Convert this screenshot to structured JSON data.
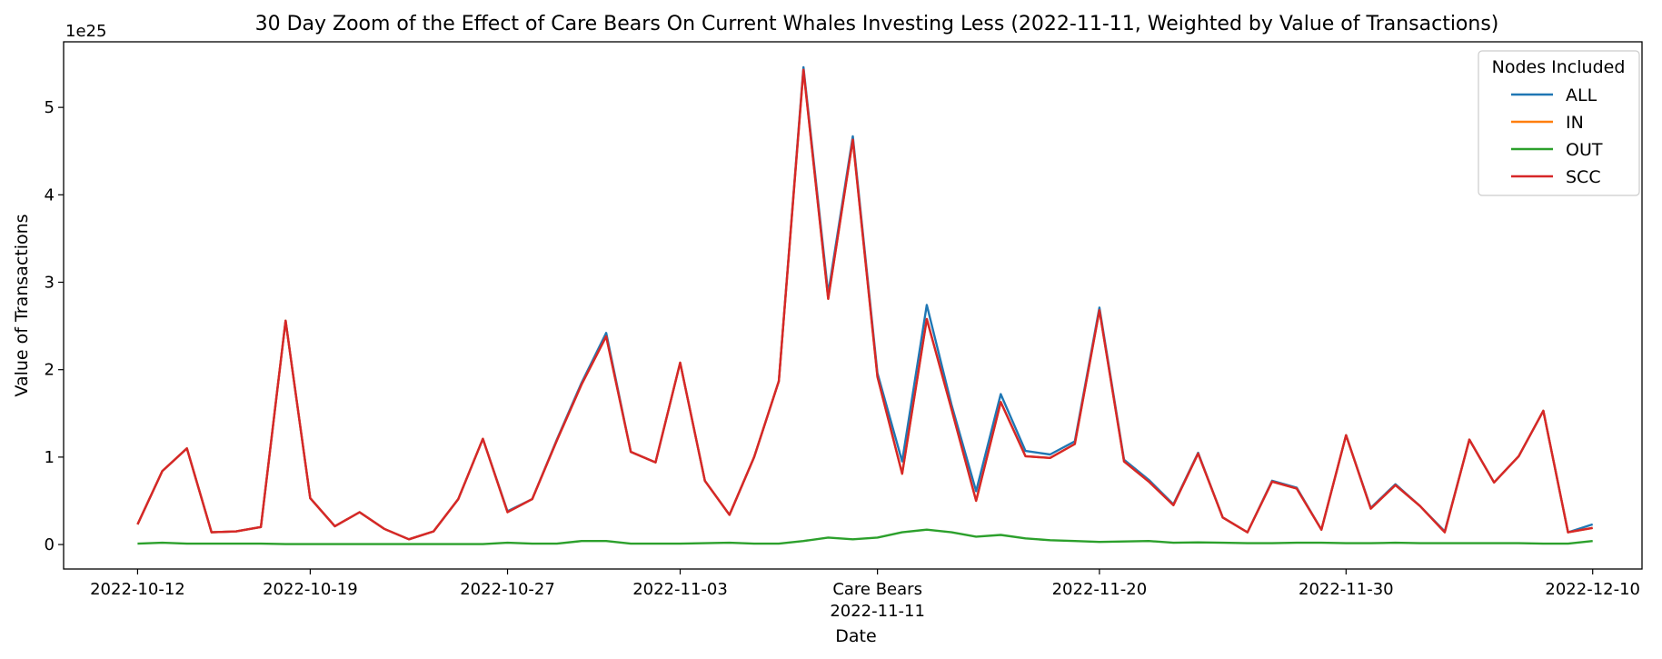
{
  "chart_data": {
    "type": "line",
    "title": "30 Day Zoom of the Effect of Care Bears On Current Whales Investing Less (2022-11-11, Weighted by Value of Transactions)",
    "xlabel": "Date",
    "ylabel": "Value of Transactions",
    "y_offset_text": "1e25",
    "y_scale_factor": 1e+25,
    "ylim": [
      -0.28,
      5.75
    ],
    "xlim": [
      "2022-10-09",
      "2022-12-12"
    ],
    "y_ticks": [
      0,
      1,
      2,
      3,
      4,
      5
    ],
    "x_ticks": [
      {
        "date": "2022-10-12",
        "label": "2022-10-12"
      },
      {
        "date": "2022-10-19",
        "label": "2022-10-19"
      },
      {
        "date": "2022-10-27",
        "label": "2022-10-27"
      },
      {
        "date": "2022-11-03",
        "label": "2022-11-03"
      },
      {
        "date": "2022-11-11",
        "label": "Care Bears",
        "label2": "2022-11-11"
      },
      {
        "date": "2022-11-20",
        "label": "2022-11-20"
      },
      {
        "date": "2022-11-30",
        "label": "2022-11-30"
      },
      {
        "date": "2022-12-10",
        "label": "2022-12-10"
      }
    ],
    "grid": false,
    "legend": {
      "title": "Nodes Included",
      "placement": "top-right"
    },
    "x": [
      "2022-10-12",
      "2022-10-13",
      "2022-10-14",
      "2022-10-15",
      "2022-10-16",
      "2022-10-17",
      "2022-10-18",
      "2022-10-19",
      "2022-10-20",
      "2022-10-21",
      "2022-10-22",
      "2022-10-23",
      "2022-10-24",
      "2022-10-25",
      "2022-10-26",
      "2022-10-27",
      "2022-10-28",
      "2022-10-29",
      "2022-10-30",
      "2022-10-31",
      "2022-11-01",
      "2022-11-02",
      "2022-11-03",
      "2022-11-04",
      "2022-11-05",
      "2022-11-06",
      "2022-11-07",
      "2022-11-08",
      "2022-11-09",
      "2022-11-10",
      "2022-11-11",
      "2022-11-12",
      "2022-11-13",
      "2022-11-14",
      "2022-11-15",
      "2022-11-16",
      "2022-11-17",
      "2022-11-18",
      "2022-11-19",
      "2022-11-20",
      "2022-11-21",
      "2022-11-22",
      "2022-11-23",
      "2022-11-24",
      "2022-11-25",
      "2022-11-26",
      "2022-11-27",
      "2022-11-28",
      "2022-11-29",
      "2022-11-30",
      "2022-12-01",
      "2022-12-02",
      "2022-12-03",
      "2022-12-04",
      "2022-12-05",
      "2022-12-06",
      "2022-12-07",
      "2022-12-08",
      "2022-12-09",
      "2022-12-10"
    ],
    "series": [
      {
        "name": "ALL",
        "color": "#1f77b4",
        "values": [
          0.23,
          0.84,
          1.1,
          0.14,
          0.15,
          0.2,
          2.56,
          0.53,
          0.21,
          0.37,
          0.18,
          0.06,
          0.15,
          0.52,
          1.21,
          0.38,
          0.52,
          1.2,
          1.85,
          2.42,
          1.06,
          0.94,
          2.08,
          0.73,
          0.34,
          1.0,
          1.87,
          5.46,
          2.87,
          4.67,
          1.96,
          0.95,
          2.74,
          1.6,
          0.61,
          1.72,
          1.07,
          1.03,
          1.18,
          2.71,
          0.97,
          0.74,
          0.46,
          1.05,
          0.31,
          0.14,
          0.73,
          0.65,
          0.17,
          1.25,
          0.42,
          0.69,
          0.44,
          0.15,
          1.2,
          0.71,
          1.01,
          1.53,
          0.14,
          0.23
        ]
      },
      {
        "name": "IN",
        "color": "#ff7f0e",
        "values": [
          0.23,
          0.84,
          1.1,
          0.14,
          0.15,
          0.2,
          2.56,
          0.53,
          0.21,
          0.37,
          0.18,
          0.06,
          0.15,
          0.52,
          1.21,
          0.37,
          0.52,
          1.19,
          1.83,
          2.38,
          1.06,
          0.94,
          2.08,
          0.73,
          0.34,
          1.0,
          1.87,
          5.43,
          2.81,
          4.63,
          1.92,
          0.81,
          2.58,
          1.55,
          0.5,
          1.63,
          1.01,
          0.99,
          1.15,
          2.68,
          0.95,
          0.72,
          0.45,
          1.04,
          0.31,
          0.14,
          0.72,
          0.64,
          0.17,
          1.25,
          0.41,
          0.68,
          0.44,
          0.14,
          1.2,
          0.71,
          1.01,
          1.53,
          0.14,
          0.19
        ]
      },
      {
        "name": "OUT",
        "color": "#2ca02c",
        "values": [
          0.01,
          0.02,
          0.01,
          0.01,
          0.01,
          0.01,
          0.005,
          0.005,
          0.005,
          0.005,
          0.005,
          0.005,
          0.005,
          0.005,
          0.005,
          0.02,
          0.01,
          0.01,
          0.04,
          0.04,
          0.01,
          0.01,
          0.01,
          0.015,
          0.02,
          0.01,
          0.01,
          0.04,
          0.08,
          0.06,
          0.08,
          0.14,
          0.17,
          0.14,
          0.09,
          0.11,
          0.07,
          0.05,
          0.04,
          0.03,
          0.035,
          0.04,
          0.02,
          0.025,
          0.02,
          0.015,
          0.015,
          0.02,
          0.02,
          0.015,
          0.015,
          0.02,
          0.015,
          0.015,
          0.015,
          0.015,
          0.015,
          0.01,
          0.01,
          0.04
        ]
      },
      {
        "name": "SCC",
        "color": "#d62728",
        "values": [
          0.23,
          0.84,
          1.1,
          0.14,
          0.15,
          0.2,
          2.56,
          0.53,
          0.21,
          0.37,
          0.18,
          0.06,
          0.15,
          0.52,
          1.21,
          0.37,
          0.52,
          1.19,
          1.83,
          2.38,
          1.06,
          0.94,
          2.08,
          0.73,
          0.34,
          1.0,
          1.87,
          5.43,
          2.81,
          4.63,
          1.92,
          0.81,
          2.58,
          1.55,
          0.5,
          1.63,
          1.01,
          0.99,
          1.15,
          2.68,
          0.95,
          0.72,
          0.45,
          1.04,
          0.31,
          0.14,
          0.72,
          0.64,
          0.17,
          1.25,
          0.41,
          0.68,
          0.44,
          0.14,
          1.2,
          0.71,
          1.01,
          1.53,
          0.14,
          0.19
        ]
      }
    ]
  }
}
